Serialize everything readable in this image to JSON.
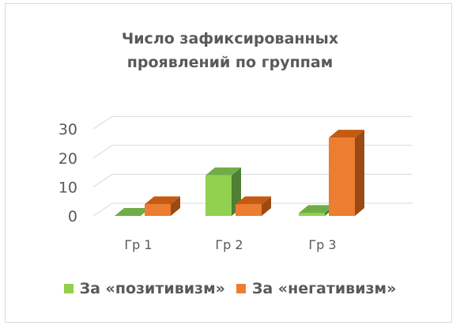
{
  "chart_data": {
    "type": "bar",
    "title_lines": [
      "Число зафиксированных",
      "проявлений по группам"
    ],
    "categories": [
      "Гр 1",
      "Гр 2",
      "Гр 3"
    ],
    "series": [
      {
        "name": "За «позитивизм»",
        "values": [
          0,
          14,
          1
        ],
        "color": "#92d050",
        "top_color": "#70ad47",
        "side_color": "#507e32"
      },
      {
        "name": "За «негативизм»",
        "values": [
          4,
          4,
          27
        ],
        "color": "#ed7d31",
        "top_color": "#c55a11",
        "side_color": "#9c4a13"
      }
    ],
    "y_ticks": [
      0,
      10,
      20,
      30
    ],
    "ylim": [
      0,
      30
    ],
    "grid": true,
    "legend_position": "bottom",
    "style": "3d-clustered-column"
  }
}
